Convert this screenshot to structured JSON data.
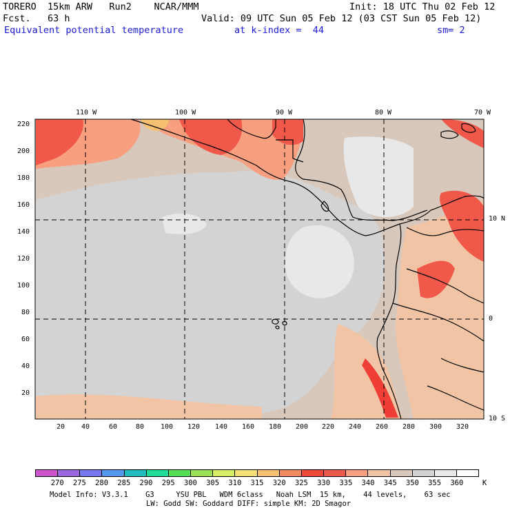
{
  "header": {
    "line1_left": "TORERO  15km ARW   Run2    NCAR/MMM",
    "line1_right": "Init: 18 UTC Thu 02 Feb 12",
    "line2_left": "Fcst.   63 h",
    "line2_right": "Valid: 09 UTC Sun 05 Feb 12 (03 CST Sun 05 Feb 12)",
    "field_name": "Equivalent potential temperature",
    "level": "at k-index =  44",
    "smoothing": "sm= 2"
  },
  "map": {
    "top_lon_labels": [
      "110 W",
      "100 W",
      "90 W",
      "80 W",
      "70 W"
    ],
    "right_lat_labels": [
      "10 N",
      "0",
      "10 S"
    ],
    "left_grid_labels": [
      "220",
      "200",
      "180",
      "160",
      "140",
      "120",
      "100",
      "80",
      "60",
      "40",
      "20"
    ],
    "bottom_grid_labels": [
      "20",
      "40",
      "60",
      "80",
      "100",
      "120",
      "140",
      "160",
      "180",
      "200",
      "220",
      "240",
      "260",
      "280",
      "300",
      "320"
    ],
    "colors": {
      "ocean_cool": "#d3d3d3",
      "ocean_pale": "#e8e8e8",
      "mid_beige": "#d8c8bc",
      "warm_peach": "#f0c4a4",
      "salmon": "#f89f80",
      "red": "#f0584a",
      "hot_red": "#ee3e36",
      "yellow_orange": "#f5c070",
      "lines": "#000000"
    }
  },
  "colorbar": {
    "labels": [
      "270",
      "275",
      "280",
      "285",
      "290",
      "295",
      "300",
      "305",
      "310",
      "315",
      "320",
      "325",
      "330",
      "335",
      "340",
      "345",
      "350",
      "355",
      "360"
    ],
    "unit": "K",
    "colors": [
      "#cc55cc",
      "#9966dd",
      "#7777ee",
      "#5599ee",
      "#22bbbb",
      "#22dd99",
      "#55dd55",
      "#99e055",
      "#d5ee66",
      "#f5e077",
      "#f5c070",
      "#f08a60",
      "#ee4a3a",
      "#ee5a4a",
      "#f89f80",
      "#f0c4a4",
      "#d8c8bc",
      "#d3d3d3",
      "#e8e8e8",
      "#ffffff"
    ]
  },
  "footer": {
    "line1": "Model Info: V3.3.1    G3     YSU PBL   WDM 6class   Noah LSM  15 km,    44 levels,    63 sec",
    "line2": "LW: Godd SW: Goddard DIFF: simple KM: 2D Smagor"
  }
}
